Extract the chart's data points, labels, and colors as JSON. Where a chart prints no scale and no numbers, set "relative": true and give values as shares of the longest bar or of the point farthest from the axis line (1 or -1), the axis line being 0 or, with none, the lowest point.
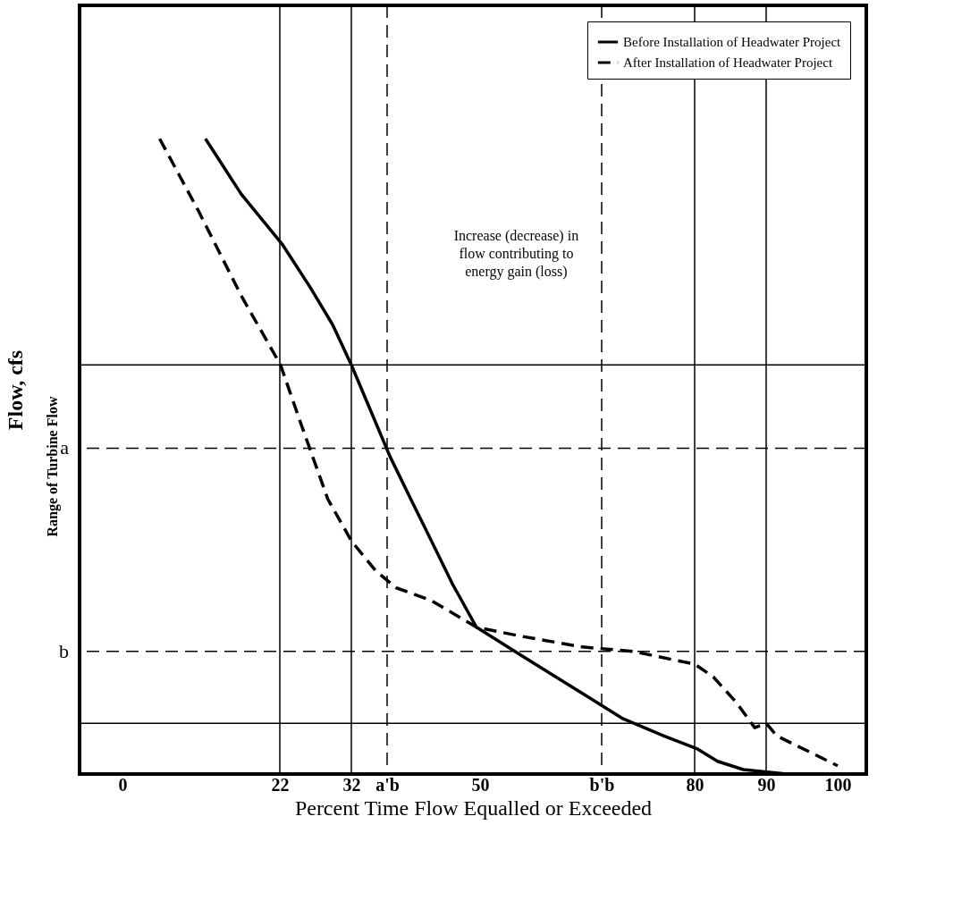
{
  "chart_data": {
    "type": "line",
    "relative": true,
    "xlabel": "Percent Time Flow Equalled or Exceeded",
    "ylabel": "Flow, cfs",
    "xlim": [
      -6,
      104
    ],
    "xticks": [
      0,
      22,
      32,
      {
        "value": 37,
        "label": "a'b"
      },
      50,
      {
        "value": 67,
        "label": "b'b"
      },
      80,
      90,
      100
    ],
    "series": [
      {
        "name": "Before Installation of Headwater Project",
        "color": "#000000",
        "line_style": "solid",
        "x": [
          11.6,
          16.6,
          22.4,
          26.2,
          29.4,
          32,
          34.4,
          37.4,
          40.3,
          43.2,
          46.1,
          49.5,
          55.7,
          64.3,
          70,
          75.7,
          80.3,
          83.2,
          86.8,
          92.9,
          100
        ],
        "values": [
          1.0,
          0.913,
          0.833,
          0.767,
          0.707,
          0.644,
          0.58,
          0.5,
          0.433,
          0.367,
          0.3,
          0.231,
          0.187,
          0.127,
          0.087,
          0.06,
          0.04,
          0.02,
          0.007,
          0,
          0
        ]
      },
      {
        "name": "After Installation of Headwater Project",
        "color": "#000000",
        "line_style": "dashed",
        "x": [
          5.2,
          10.6,
          16.6,
          22.1,
          24.9,
          28.7,
          32,
          35.4,
          38.3,
          43.2,
          49.5,
          55.7,
          64.3,
          71.4,
          80,
          82.6,
          85.8,
          88.4,
          90,
          91.5,
          100
        ],
        "values": [
          1.0,
          0.887,
          0.753,
          0.644,
          0.553,
          0.433,
          0.367,
          0.32,
          0.293,
          0.273,
          0.231,
          0.217,
          0.2,
          0.193,
          0.173,
          0.153,
          0.113,
          0.073,
          0.08,
          0.06,
          0.013
        ]
      }
    ],
    "ref_lines": [
      {
        "axis": "y",
        "value": 0.644,
        "line_style": "solid"
      },
      {
        "axis": "y",
        "value": 0.08,
        "line_style": "solid"
      },
      {
        "axis": "y",
        "value": 0.513,
        "label": "a",
        "line_style": "dashed"
      },
      {
        "axis": "y",
        "value": 0.193,
        "label": "b",
        "line_style": "dashed"
      },
      {
        "axis": "x",
        "value": 22,
        "line_style": "solid"
      },
      {
        "axis": "x",
        "value": 32,
        "line_style": "solid"
      },
      {
        "axis": "x",
        "value": 37,
        "line_style": "dashed"
      },
      {
        "axis": "x",
        "value": 67,
        "line_style": "dashed"
      },
      {
        "axis": "x",
        "value": 80,
        "line_style": "solid"
      },
      {
        "axis": "x",
        "value": 90,
        "line_style": "solid"
      }
    ],
    "annotations": [
      "Increase (decrease) in flow contributing to energy gain (loss)",
      "Range of Turbine Flow"
    ],
    "legend": "top right",
    "grid": false
  }
}
